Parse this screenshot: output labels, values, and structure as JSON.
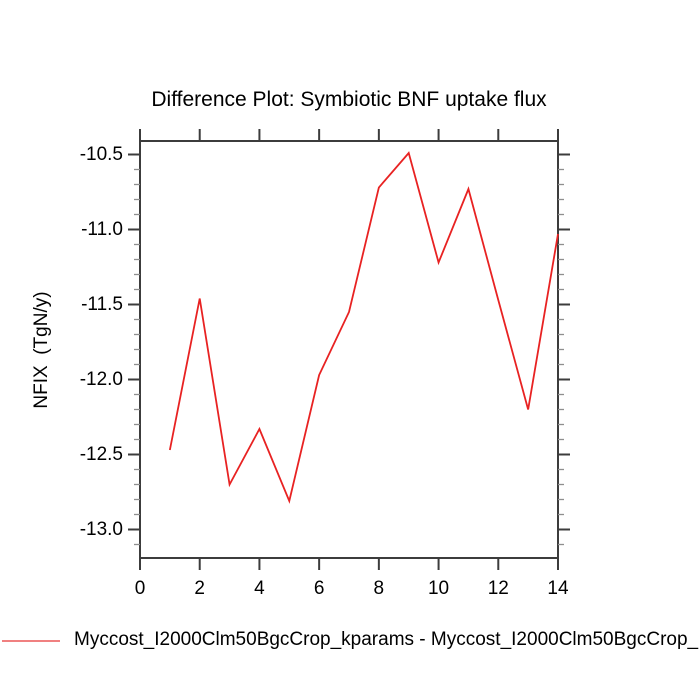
{
  "title": "Difference Plot: Symbiotic BNF uptake flux",
  "y_axis_title": "NFIX  (TgN/y)",
  "legend": {
    "label": "Myccost_I2000Clm50BgcCrop_kparams - Myccost_I2000Clm50BgcCrop_",
    "swatch_color": "#f08080"
  },
  "colors": {
    "line": "#e82222",
    "axis": "#3c3c3c",
    "minor_tick": "#8f8f8f",
    "text": "#000000",
    "background": "#ffffff"
  },
  "chart_data": {
    "type": "line",
    "title": "Difference Plot: Symbiotic BNF uptake flux",
    "xlabel": "",
    "ylabel": "NFIX  (TgN/y)",
    "x": [
      1,
      2,
      3,
      4,
      5,
      6,
      7,
      8,
      9,
      10,
      11,
      12,
      13,
      14
    ],
    "series": [
      {
        "name": "Myccost_I2000Clm50BgcCrop_kparams - Myccost_I2000Clm50BgcCrop_",
        "color": "#e82222",
        "values": [
          -12.47,
          -11.46,
          -12.7,
          -12.33,
          -12.81,
          -11.97,
          -11.55,
          -10.72,
          -10.49,
          -11.22,
          -10.73,
          -11.47,
          -12.2,
          -11.03
        ]
      }
    ],
    "xlim": [
      0,
      14
    ],
    "ylim": [
      -13.19,
      -10.41
    ],
    "xticks": [
      0,
      2,
      4,
      6,
      8,
      10,
      12,
      14
    ],
    "xtick_labels": [
      "0",
      "2",
      "4",
      "6",
      "8",
      "10",
      "12",
      "14"
    ],
    "yticks": [
      -10.5,
      -11.0,
      -11.5,
      -12.0,
      -12.5,
      -13.0
    ],
    "ytick_labels": [
      "-10.5",
      "-11.0",
      "-11.5",
      "-12.0",
      "-12.5",
      "-13.0"
    ],
    "y_minor_step": 0.1,
    "grid": false,
    "legend_position": "bottom-left"
  }
}
